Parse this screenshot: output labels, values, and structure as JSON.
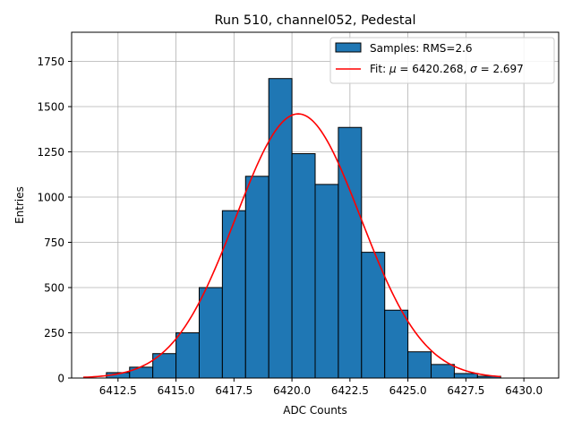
{
  "chart_data": {
    "type": "bar",
    "title": "Run 510, channel052, Pedestal",
    "xlabel": "ADC Counts",
    "ylabel": "Entries",
    "xlim": [
      6410.5,
      6431.5
    ],
    "ylim": [
      0,
      1911
    ],
    "xticks": [
      6412.5,
      6415.0,
      6417.5,
      6420.0,
      6422.5,
      6425.0,
      6427.5,
      6430.0
    ],
    "xtick_labels": [
      "6412.5",
      "6415.0",
      "6417.5",
      "6420.0",
      "6422.5",
      "6425.0",
      "6427.5",
      "6430.0"
    ],
    "yticks": [
      0,
      250,
      500,
      750,
      1000,
      1250,
      1500,
      1750
    ],
    "ytick_labels": [
      "0",
      "250",
      "500",
      "750",
      "1000",
      "1250",
      "1500",
      "1750"
    ],
    "grid": true,
    "legend_position": "top-right",
    "bins": {
      "edges": [
        6412,
        6413,
        6414,
        6415,
        6416,
        6417,
        6418,
        6419,
        6420,
        6421,
        6422,
        6423,
        6424,
        6425,
        6426,
        6427,
        6428,
        6429
      ],
      "counts": [
        30,
        60,
        135,
        250,
        500,
        925,
        1115,
        1655,
        1240,
        1070,
        1385,
        695,
        375,
        145,
        75,
        25,
        10
      ],
      "color": "#1f77b4",
      "edge_color": "#000000",
      "legend_label": "Samples: RMS=2.6"
    },
    "fit": {
      "mu": 6420.268,
      "sigma": 2.697,
      "amplitude": 1460,
      "x_range": [
        6411,
        6429
      ],
      "color": "#ff0000",
      "legend_label_prefix": "Fit: ",
      "mu_symbol": "μ",
      "mu_text": " = 6420.268, ",
      "sigma_symbol": "σ",
      "sigma_text": " = 2.697"
    }
  }
}
